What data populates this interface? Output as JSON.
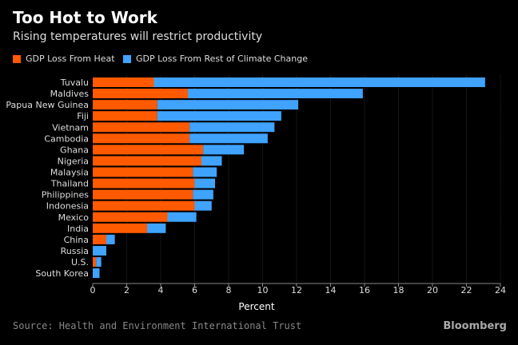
{
  "title": "Too Hot to Work",
  "subtitle": "Rising temperatures will restrict productivity",
  "source": "Source: Health and Environment International Trust",
  "brand": "Bloomberg",
  "colors": {
    "heat": "#ff5a00",
    "rest": "#3fa3ff",
    "background": "#000000",
    "grid": "#2a2a2a"
  },
  "chart_data": {
    "type": "bar",
    "orientation": "horizontal",
    "stacked": true,
    "title": "Too Hot to Work",
    "subtitle": "Rising temperatures will restrict productivity",
    "xlabel": "Percent",
    "ylabel": "",
    "xlim": [
      0,
      24
    ],
    "xticks": [
      "0",
      "2",
      "4",
      "6",
      "8",
      "10",
      "12",
      "14",
      "16",
      "18",
      "20",
      "22",
      "24"
    ],
    "grid": true,
    "legend": "top-left",
    "categories": [
      "Tuvalu",
      "Maldives",
      "Papua New Guinea",
      "Fiji",
      "Vietnam",
      "Cambodia",
      "Ghana",
      "Nigeria",
      "Malaysia",
      "Thailand",
      "Philippines",
      "Indonesia",
      "Mexico",
      "India",
      "China",
      "Russia",
      "U.S.",
      "South Korea"
    ],
    "series": [
      {
        "name": "GDP Loss From Heat",
        "values": [
          3.6,
          5.6,
          3.8,
          3.8,
          5.7,
          5.7,
          6.5,
          6.4,
          5.9,
          6.0,
          5.9,
          6.0,
          4.4,
          3.2,
          0.8,
          0.0,
          0.2,
          0.0
        ]
      },
      {
        "name": "GDP Loss From Rest of Climate Change",
        "values": [
          19.5,
          10.3,
          8.3,
          7.3,
          5.0,
          4.6,
          2.4,
          1.2,
          1.4,
          1.2,
          1.2,
          1.0,
          1.7,
          1.1,
          0.5,
          0.8,
          0.3,
          0.4
        ]
      }
    ]
  }
}
